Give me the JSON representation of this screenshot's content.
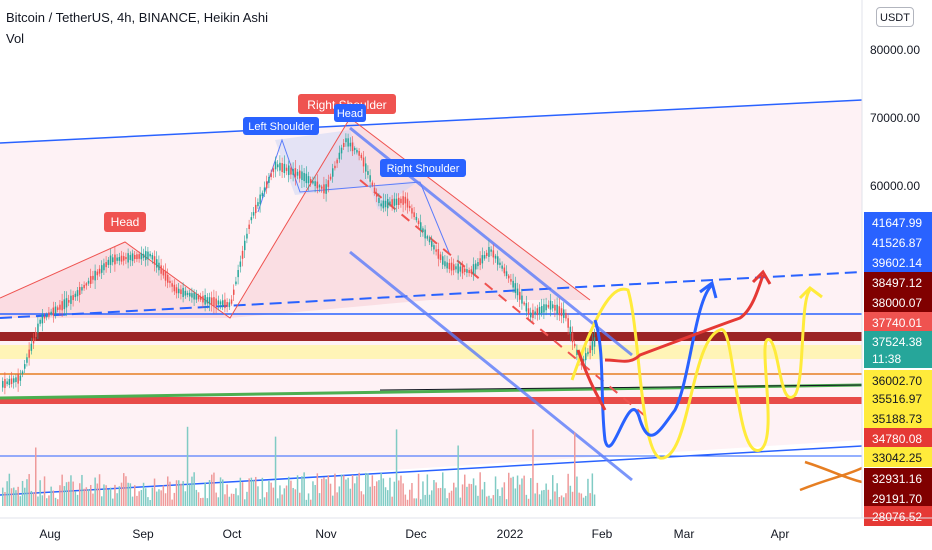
{
  "header": {
    "title": "Bitcoin / TetherUS, 4h, BINANCE, Heikin Ashi",
    "volume_label": "Vol",
    "currency": "USDT"
  },
  "colors": {
    "up": "#26a69a",
    "down": "#ef5350",
    "blue": "#2962ff",
    "red": "#e53935",
    "yellow": "#ffeb3b",
    "green": "#4caf50",
    "orange": "#e67e22",
    "maroon": "#800000",
    "pink": "#f8bbd0"
  },
  "chart_data": {
    "type": "line",
    "title": "",
    "y_axis_ticks": [
      "80000.00",
      "70000.00",
      "60000.00"
    ],
    "x_axis_ticks": [
      "Aug",
      "Sep",
      "Oct",
      "Nov",
      "Dec",
      "2022",
      "Feb",
      "Mar",
      "Apr"
    ],
    "price_labels": [
      {
        "text": "41647.99",
        "bg": "#2962ff",
        "fg": "#ffffff"
      },
      {
        "text": "41526.87",
        "bg": "#2962ff",
        "fg": "#ffffff"
      },
      {
        "text": "39602.14",
        "bg": "#2962ff",
        "fg": "#ffffff"
      },
      {
        "text": "38497.12",
        "bg": "#800000",
        "fg": "#ffffff"
      },
      {
        "text": "38000.07",
        "bg": "#800000",
        "fg": "#ffffff"
      },
      {
        "text": "37740.01",
        "bg": "#ef5350",
        "fg": "#ffffff"
      },
      {
        "text": "37524.38",
        "bg": "#26a69a",
        "fg": "#ffffff"
      },
      {
        "text": "11:38",
        "bg": "#26a69a",
        "fg": "#ffffff"
      },
      {
        "text": "36002.70",
        "bg": "#ffeb3b",
        "fg": "#131722"
      },
      {
        "text": "35516.97",
        "bg": "#ffeb3b",
        "fg": "#131722"
      },
      {
        "text": "35188.73",
        "bg": "#ffeb3b",
        "fg": "#131722"
      },
      {
        "text": "34780.08",
        "bg": "#e53935",
        "fg": "#ffffff"
      },
      {
        "text": "33042.25",
        "bg": "#ffeb3b",
        "fg": "#131722"
      },
      {
        "text": "32931.16",
        "bg": "#800000",
        "fg": "#ffffff"
      },
      {
        "text": "29191.70",
        "bg": "#800000",
        "fg": "#ffffff"
      },
      {
        "text": "28076.52",
        "bg": "#e53935",
        "fg": "#ffffff"
      }
    ],
    "annotations": [
      {
        "text": "Head",
        "color": "#ef5350"
      },
      {
        "text": "Left Shoulder",
        "color": "#2962ff"
      },
      {
        "text": "Right Shoulder",
        "color": "#ef5350"
      },
      {
        "text": "Head",
        "color": "#2962ff"
      },
      {
        "text": "Right Shoulder",
        "color": "#2962ff"
      }
    ]
  }
}
